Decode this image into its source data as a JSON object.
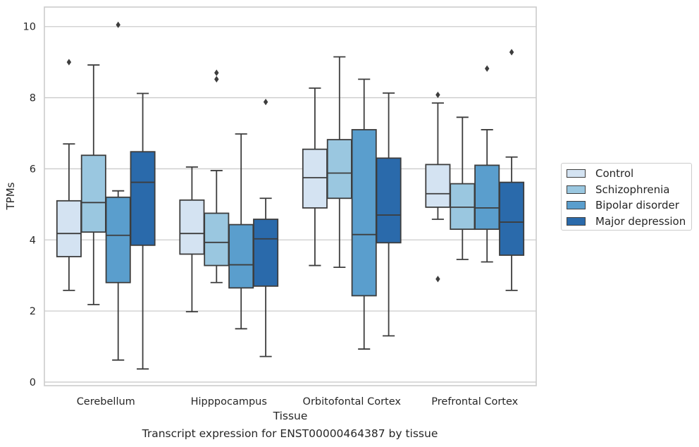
{
  "chart_data": {
    "type": "boxplot",
    "title": "",
    "xlabel": "Tissue",
    "ylabel": "TPMs",
    "ylim": [
      -0.1,
      10.55
    ],
    "yticks": [
      0,
      2,
      4,
      6,
      8,
      10
    ],
    "grid": "horizontal",
    "legend_placement": "right",
    "categories": [
      "Cerebellum",
      "Hipppocampus",
      "Orbitofontal Cortex",
      "Prefrontal Cortex"
    ],
    "series": [
      {
        "name": "Control",
        "color": "#d4e3f2",
        "boxes": [
          {
            "whisker_low": 2.58,
            "q1": 3.53,
            "median": 4.18,
            "q3": 5.1,
            "whisker_high": 6.7,
            "outliers": [
              9.0
            ]
          },
          {
            "whisker_low": 1.98,
            "q1": 3.6,
            "median": 4.18,
            "q3": 5.12,
            "whisker_high": 6.05,
            "outliers": []
          },
          {
            "whisker_low": 3.28,
            "q1": 4.9,
            "median": 5.75,
            "q3": 6.55,
            "whisker_high": 8.27,
            "outliers": []
          },
          {
            "whisker_low": 4.58,
            "q1": 4.92,
            "median": 5.3,
            "q3": 6.12,
            "whisker_high": 7.85,
            "outliers": [
              8.08,
              2.9
            ]
          }
        ]
      },
      {
        "name": "Schizophrenia",
        "color": "#9ac7e0",
        "boxes": [
          {
            "whisker_low": 2.18,
            "q1": 4.22,
            "median": 5.05,
            "q3": 6.38,
            "whisker_high": 8.92,
            "outliers": []
          },
          {
            "whisker_low": 2.8,
            "q1": 3.28,
            "median": 3.93,
            "q3": 4.75,
            "whisker_high": 5.95,
            "outliers": [
              8.7,
              8.52
            ]
          },
          {
            "whisker_low": 3.23,
            "q1": 5.17,
            "median": 5.88,
            "q3": 6.82,
            "whisker_high": 9.15,
            "outliers": []
          },
          {
            "whisker_low": 3.45,
            "q1": 4.3,
            "median": 4.92,
            "q3": 5.58,
            "whisker_high": 7.45,
            "outliers": []
          }
        ]
      },
      {
        "name": "Bipolar disorder",
        "color": "#5a9ecd",
        "boxes": [
          {
            "whisker_low": 0.62,
            "q1": 2.8,
            "median": 4.13,
            "q3": 5.2,
            "whisker_high": 5.38,
            "outliers": [
              10.05
            ]
          },
          {
            "whisker_low": 1.5,
            "q1": 2.65,
            "median": 3.3,
            "q3": 4.43,
            "whisker_high": 6.98,
            "outliers": []
          },
          {
            "whisker_low": 0.93,
            "q1": 2.43,
            "median": 4.15,
            "q3": 7.1,
            "whisker_high": 8.52,
            "outliers": []
          },
          {
            "whisker_low": 3.38,
            "q1": 4.3,
            "median": 4.9,
            "q3": 6.1,
            "whisker_high": 7.1,
            "outliers": [
              8.82
            ]
          }
        ]
      },
      {
        "name": "Major depression",
        "color": "#2a6aab",
        "boxes": [
          {
            "whisker_low": 0.37,
            "q1": 3.85,
            "median": 5.62,
            "q3": 6.48,
            "whisker_high": 8.12,
            "outliers": []
          },
          {
            "whisker_low": 0.72,
            "q1": 2.7,
            "median": 4.03,
            "q3": 4.58,
            "whisker_high": 5.17,
            "outliers": [
              7.88
            ]
          },
          {
            "whisker_low": 1.3,
            "q1": 3.92,
            "median": 4.7,
            "q3": 6.3,
            "whisker_high": 8.13,
            "outliers": []
          },
          {
            "whisker_low": 2.58,
            "q1": 3.57,
            "median": 4.5,
            "q3": 5.62,
            "whisker_high": 6.33,
            "outliers": [
              9.28
            ]
          }
        ]
      }
    ]
  },
  "caption": "Transcript expression for ENST00000464387 by tissue"
}
